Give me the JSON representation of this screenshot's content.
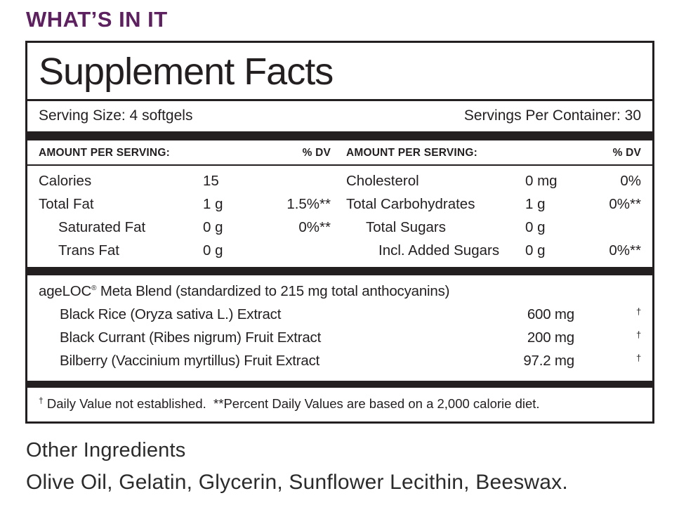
{
  "colors": {
    "accent_purple": "#5c215e",
    "text_black": "#231f20"
  },
  "page": {
    "heading": "WHAT’S IN IT"
  },
  "panel": {
    "title": "Supplement Facts",
    "serving_size": "Serving Size: 4 softgels",
    "servings_per_container": "Servings Per Container: 30",
    "column_header": {
      "amount": "AMOUNT PER SERVING:",
      "dv": "% DV"
    },
    "nutrients_left": [
      {
        "label": "Calories",
        "amount": "15",
        "dv": ""
      },
      {
        "label": "Total Fat",
        "amount": "1 g",
        "dv": "1.5%**"
      },
      {
        "label": "Saturated Fat",
        "amount": "0 g",
        "dv": "0%**"
      },
      {
        "label": "Trans Fat",
        "amount": "0 g",
        "dv": ""
      }
    ],
    "nutrients_right": [
      {
        "label": "Cholesterol",
        "amount": "0 mg",
        "dv": "0%"
      },
      {
        "label": "Total Carbohydrates",
        "amount": "1 g",
        "dv": "0%**"
      },
      {
        "label": "Total Sugars",
        "amount": "0 g",
        "dv": ""
      },
      {
        "label": "Incl. Added Sugars",
        "amount": "0 g",
        "dv": "0%**"
      }
    ],
    "blend": {
      "brand": "ageLOC",
      "trademark": "®",
      "title_rest": " Meta Blend (standardized to 215 mg total anthocyanins)",
      "items": [
        {
          "label": "Black Rice (Oryza sativa L.) Extract",
          "amount": "600 mg",
          "dv": "†"
        },
        {
          "label": "Black Currant (Ribes nigrum) Fruit Extract",
          "amount": "200 mg",
          "dv": "†"
        },
        {
          "label": "Bilberry (Vaccinium myrtillus) Fruit Extract",
          "amount": "97.2 mg",
          "dv": "†"
        }
      ]
    },
    "footnote": {
      "mark": "†",
      "text": " Daily Value not established.  **Percent Daily Values are based on a 2,000 calorie diet."
    }
  },
  "other_ingredients": {
    "heading": "Other Ingredients",
    "list": "Olive Oil, Gelatin, Glycerin, Sunflower Lecithin, Beeswax."
  }
}
